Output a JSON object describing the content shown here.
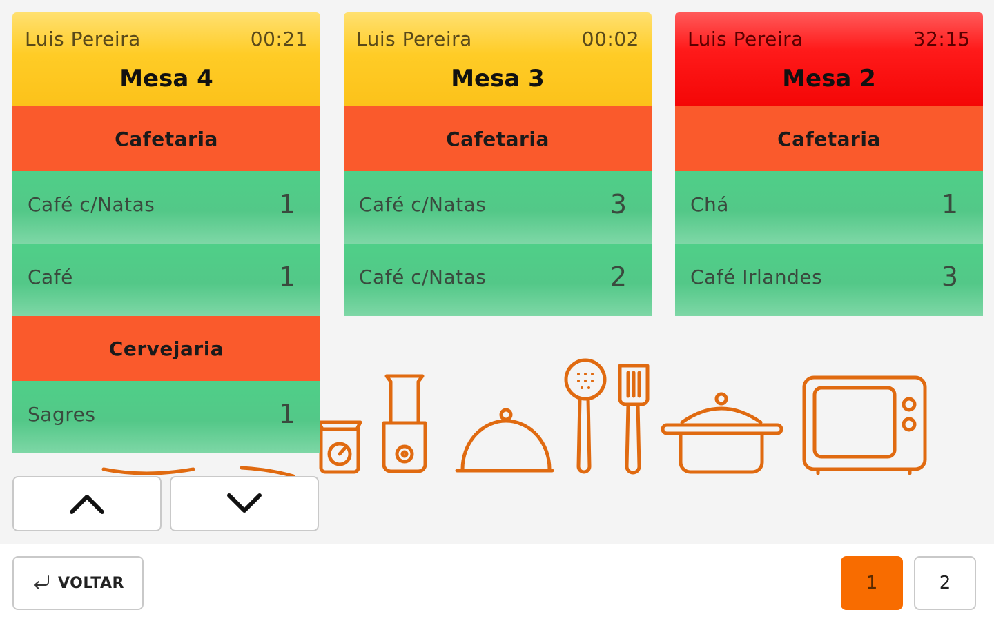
{
  "orders": [
    {
      "waiter": "Luis Pereira",
      "timer": "00:21",
      "table": "Mesa 4",
      "sections": [
        {
          "title": "Cafetaria",
          "items": [
            {
              "name": "Café c/Natas",
              "qty": "1"
            },
            {
              "name": "Café",
              "qty": "1"
            }
          ]
        },
        {
          "title": "Cervejaria",
          "items": [
            {
              "name": "Sagres",
              "qty": "1"
            }
          ]
        }
      ]
    },
    {
      "waiter": "Luis Pereira",
      "timer": "00:02",
      "table": "Mesa 3",
      "sections": [
        {
          "title": "Cafetaria",
          "items": [
            {
              "name": "Café c/Natas",
              "qty": "3"
            },
            {
              "name": "Café c/Natas",
              "qty": "2"
            }
          ]
        }
      ]
    },
    {
      "waiter": "Luis Pereira",
      "timer": "32:15",
      "table": "Mesa 2",
      "sections": [
        {
          "title": "Cafetaria",
          "items": [
            {
              "name": "Chá",
              "qty": "1"
            },
            {
              "name": "Café Irlandes",
              "qty": "3"
            }
          ]
        }
      ]
    }
  ],
  "icons": {
    "scroll_up": "chevron-up-icon",
    "scroll_down": "chevron-down-icon",
    "back": "return-arrow-icon"
  },
  "footer": {
    "back_label": "VOLTAR",
    "pages": [
      "1",
      "2"
    ],
    "active_page": "1"
  },
  "colors": {
    "header_normal": "#fcc21a",
    "header_overdue": "#f40606",
    "section": "#fa5a2c",
    "item": "#53c888",
    "accent": "#f86c00",
    "illustration": "#e06a10"
  }
}
